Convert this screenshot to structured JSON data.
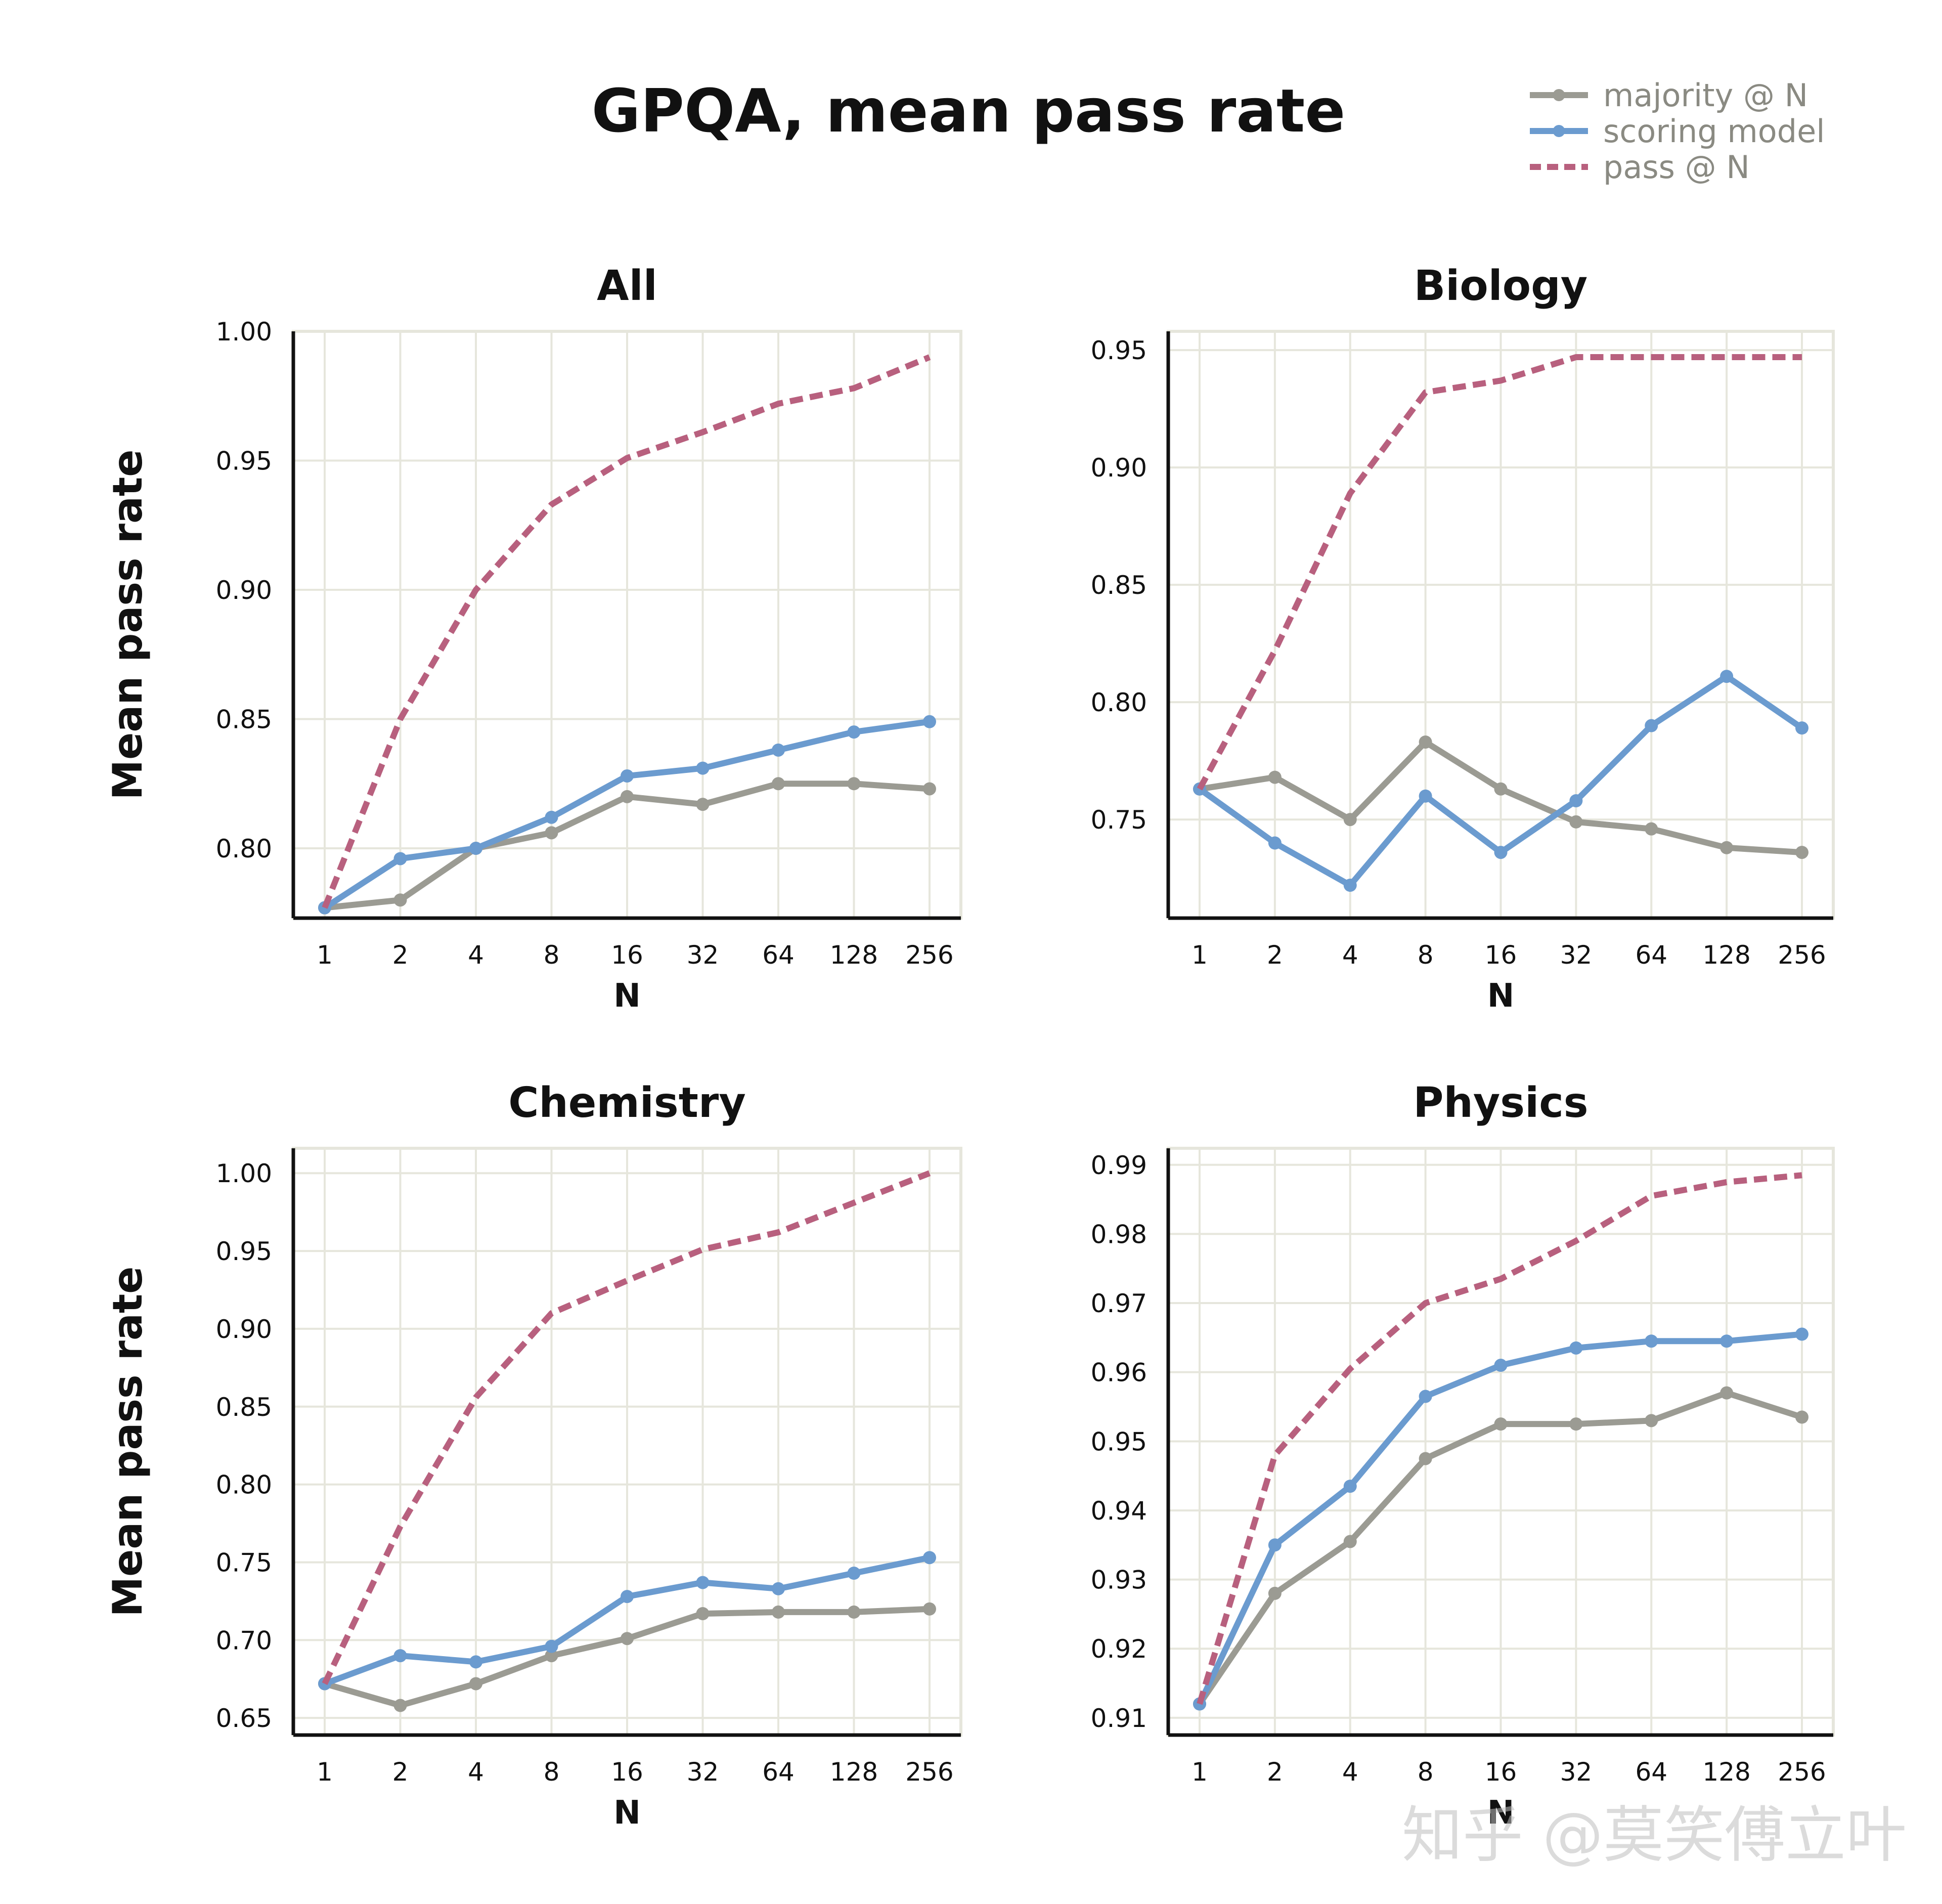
{
  "title": "GPQA, mean pass rate",
  "legend": [
    {
      "label": "majority @ N",
      "color": "#9b9b93",
      "style": "solid-marker"
    },
    {
      "label": "scoring model",
      "color": "#6b9bcf",
      "style": "solid-marker"
    },
    {
      "label": "pass @ N",
      "color": "#b8607e",
      "style": "dashed"
    }
  ],
  "watermark": "知乎 @莫笑傅立叶",
  "chart_data": [
    {
      "type": "line",
      "title": "All",
      "xlabel": "N",
      "ylabel": "Mean pass rate",
      "categories": [
        "1",
        "2",
        "4",
        "8",
        "16",
        "32",
        "64",
        "128",
        "256"
      ],
      "ylim": [
        0.773,
        1.0
      ],
      "yticks": [
        0.8,
        0.85,
        0.9,
        0.95,
        1.0
      ],
      "ytick_labels": [
        "0.80",
        "0.85",
        "0.90",
        "0.95",
        "1.00"
      ],
      "series": [
        {
          "name": "majority @ N",
          "values": [
            0.777,
            0.78,
            0.8,
            0.806,
            0.82,
            0.817,
            0.825,
            0.825,
            0.823
          ]
        },
        {
          "name": "scoring model",
          "values": [
            0.777,
            0.796,
            0.8,
            0.812,
            0.828,
            0.831,
            0.838,
            0.845,
            0.849
          ]
        },
        {
          "name": "pass @ N",
          "values": [
            0.777,
            0.85,
            0.9,
            0.933,
            0.951,
            0.961,
            0.972,
            0.978,
            0.99
          ]
        }
      ]
    },
    {
      "type": "line",
      "title": "Biology",
      "xlabel": "N",
      "ylabel": "",
      "categories": [
        "1",
        "2",
        "4",
        "8",
        "16",
        "32",
        "64",
        "128",
        "256"
      ],
      "ylim": [
        0.708,
        0.958
      ],
      "yticks": [
        0.75,
        0.8,
        0.85,
        0.9,
        0.95
      ],
      "ytick_labels": [
        "0.75",
        "0.80",
        "0.85",
        "0.90",
        "0.95"
      ],
      "series": [
        {
          "name": "majority @ N",
          "values": [
            0.763,
            0.768,
            0.75,
            0.783,
            0.763,
            0.749,
            0.746,
            0.738,
            0.736
          ]
        },
        {
          "name": "scoring model",
          "values": [
            0.763,
            0.74,
            0.722,
            0.76,
            0.736,
            0.758,
            0.79,
            0.811,
            0.789
          ]
        },
        {
          "name": "pass @ N",
          "values": [
            0.763,
            0.822,
            0.889,
            0.932,
            0.937,
            0.947,
            0.947,
            0.947,
            0.947
          ]
        }
      ]
    },
    {
      "type": "line",
      "title": "Chemistry",
      "xlabel": "N",
      "ylabel": "Mean pass rate",
      "categories": [
        "1",
        "2",
        "4",
        "8",
        "16",
        "32",
        "64",
        "128",
        "256"
      ],
      "ylim": [
        0.639,
        1.016
      ],
      "yticks": [
        0.65,
        0.7,
        0.75,
        0.8,
        0.85,
        0.9,
        0.95,
        1.0
      ],
      "ytick_labels": [
        "0.65",
        "0.70",
        "0.75",
        "0.80",
        "0.85",
        "0.90",
        "0.95",
        "1.00"
      ],
      "series": [
        {
          "name": "majority @ N",
          "values": [
            0.672,
            0.658,
            0.672,
            0.69,
            0.701,
            0.717,
            0.718,
            0.718,
            0.72
          ]
        },
        {
          "name": "scoring model",
          "values": [
            0.672,
            0.69,
            0.686,
            0.696,
            0.728,
            0.737,
            0.733,
            0.743,
            0.753
          ]
        },
        {
          "name": "pass @ N",
          "values": [
            0.672,
            0.773,
            0.856,
            0.91,
            0.931,
            0.951,
            0.962,
            0.981,
            1.0
          ]
        }
      ]
    },
    {
      "type": "line",
      "title": "Physics",
      "xlabel": "N",
      "ylabel": "",
      "categories": [
        "1",
        "2",
        "4",
        "8",
        "16",
        "32",
        "64",
        "128",
        "256"
      ],
      "ylim": [
        0.9075,
        0.9924
      ],
      "yticks": [
        0.91,
        0.92,
        0.93,
        0.94,
        0.95,
        0.96,
        0.97,
        0.98,
        0.99
      ],
      "ytick_labels": [
        "0.91",
        "0.92",
        "0.93",
        "0.94",
        "0.95",
        "0.96",
        "0.97",
        "0.98",
        "0.99"
      ],
      "series": [
        {
          "name": "majority @ N",
          "values": [
            0.912,
            0.928,
            0.9355,
            0.9475,
            0.9525,
            0.9525,
            0.953,
            0.957,
            0.9535
          ]
        },
        {
          "name": "scoring model",
          "values": [
            0.912,
            0.935,
            0.9435,
            0.9565,
            0.961,
            0.9635,
            0.9645,
            0.9645,
            0.9655
          ]
        },
        {
          "name": "pass @ N",
          "values": [
            0.912,
            0.948,
            0.9605,
            0.97,
            0.9735,
            0.979,
            0.9855,
            0.9875,
            0.9885
          ]
        }
      ]
    }
  ]
}
